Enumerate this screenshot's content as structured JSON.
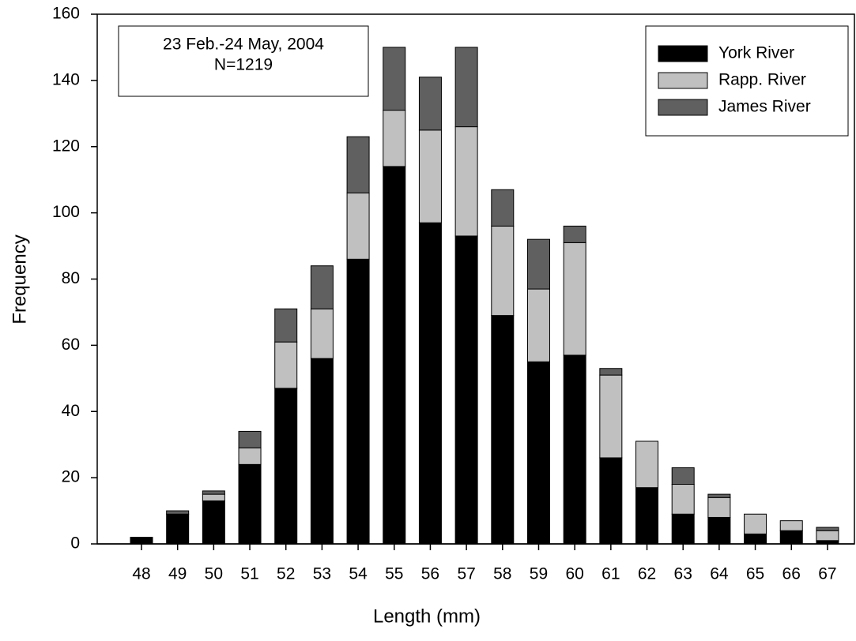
{
  "chart_data": {
    "type": "stacked_bar",
    "xlabel": "Length (mm)",
    "ylabel": "Frequency",
    "annotation": [
      "23 Feb.-24 May, 2004",
      "N=1219"
    ],
    "categories": [
      "48",
      "49",
      "50",
      "51",
      "52",
      "53",
      "54",
      "55",
      "56",
      "57",
      "58",
      "59",
      "60",
      "61",
      "62",
      "63",
      "64",
      "65",
      "66",
      "67"
    ],
    "series": [
      {
        "name": "York River",
        "color": "#000000",
        "values": [
          2,
          9,
          13,
          24,
          47,
          56,
          86,
          114,
          97,
          93,
          69,
          55,
          57,
          26,
          17,
          9,
          8,
          3,
          4,
          1
        ]
      },
      {
        "name": "Rapp. River",
        "color": "#c0c0c0",
        "values": [
          0,
          0,
          2,
          5,
          14,
          15,
          20,
          17,
          28,
          33,
          27,
          22,
          34,
          25,
          14,
          9,
          6,
          6,
          3,
          3
        ]
      },
      {
        "name": "James River",
        "color": "#606060",
        "values": [
          0,
          1,
          1,
          5,
          10,
          13,
          17,
          19,
          16,
          24,
          11,
          15,
          5,
          2,
          0,
          5,
          1,
          0,
          0,
          1
        ]
      }
    ],
    "ylim": [
      0,
      160
    ],
    "yticks": [
      0,
      20,
      40,
      60,
      80,
      100,
      120,
      140,
      160
    ],
    "legend": "upper right"
  }
}
